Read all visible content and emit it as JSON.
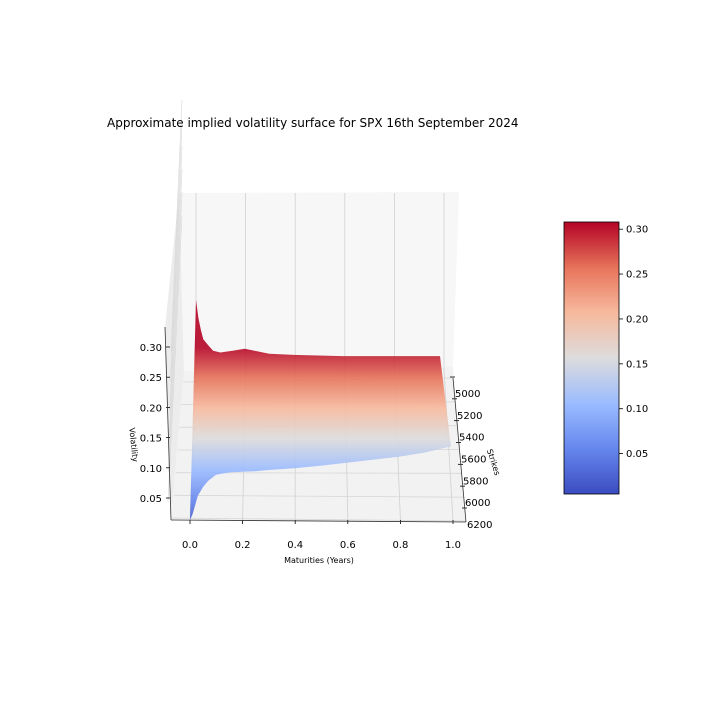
{
  "chart_data": {
    "type": "surface3d",
    "title": "Approximate implied volatility surface for SPX 16th September 2024",
    "xlabel": "Maturities (Years)",
    "ylabel": "Strikes",
    "zlabel": "Volatility",
    "x_ticks": [
      "0.0",
      "0.2",
      "0.4",
      "0.6",
      "0.8",
      "1.0"
    ],
    "y_ticks": [
      "5000",
      "5200",
      "5400",
      "5600",
      "5800",
      "6000",
      "6200"
    ],
    "z_ticks": [
      "0.05",
      "0.10",
      "0.15",
      "0.20",
      "0.25",
      "0.30"
    ],
    "xlim": [
      -0.07,
      1.03
    ],
    "ylim": [
      4900,
      6250
    ],
    "zlim": [
      0.02,
      0.33
    ],
    "colormap": "coolwarm",
    "colorbar": {
      "ticks": [
        "0.05",
        "0.10",
        "0.15",
        "0.20",
        "0.25",
        "0.30"
      ],
      "range": [
        0.005,
        0.308
      ]
    },
    "maturities": [
      0.0,
      0.01,
      0.02,
      0.03,
      0.05,
      0.07,
      0.1,
      0.15,
      0.2,
      0.25,
      0.3,
      0.4,
      0.5,
      0.6,
      0.7,
      0.8,
      0.9,
      1.0
    ],
    "max_vol_by_maturity": [
      0.32,
      0.29,
      0.27,
      0.255,
      0.245,
      0.236,
      0.233,
      0.236,
      0.239,
      0.235,
      0.231,
      0.229,
      0.228,
      0.227,
      0.227,
      0.227,
      0.227,
      0.227
    ],
    "min_vol_by_maturity": [
      0.025,
      0.035,
      0.05,
      0.065,
      0.08,
      0.09,
      0.1,
      0.104,
      0.105,
      0.106,
      0.108,
      0.111,
      0.115,
      0.12,
      0.125,
      0.13,
      0.137,
      0.147
    ]
  }
}
